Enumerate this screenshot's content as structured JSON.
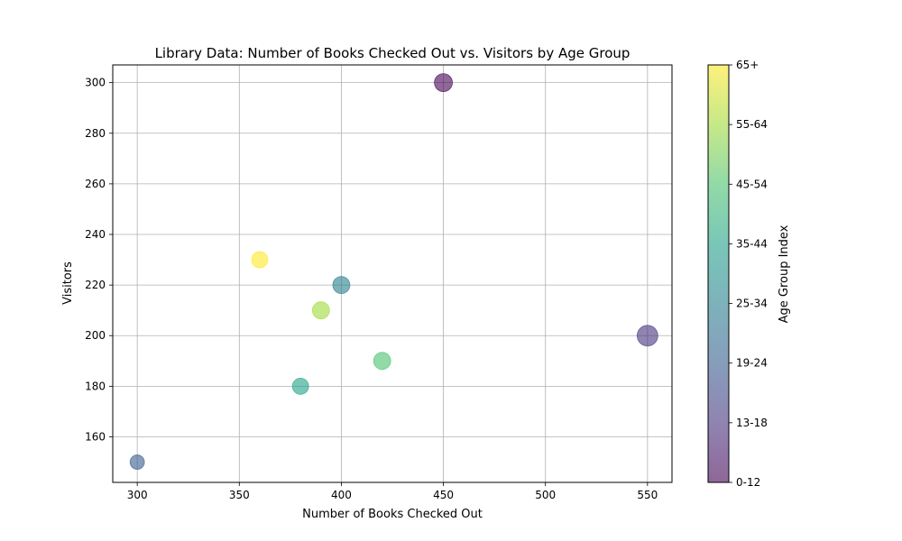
{
  "chart_data": {
    "type": "scatter",
    "title": "Library Data: Number of Books Checked Out vs. Visitors by Age Group",
    "xlabel": "Number of Books Checked Out",
    "ylabel": "Visitors",
    "xlim": [
      288,
      562
    ],
    "ylim": [
      142,
      307
    ],
    "x_ticks": [
      300,
      350,
      400,
      450,
      500,
      550
    ],
    "y_ticks": [
      160,
      180,
      200,
      220,
      240,
      260,
      280,
      300
    ],
    "grid": true,
    "colormap": "viridis",
    "marker_alpha": 0.6,
    "colorbar": {
      "label": "Age Group Index",
      "range": [
        0,
        7
      ],
      "tick_labels": [
        "0-12",
        "13-18",
        "19-24",
        "25-34",
        "35-44",
        "45-54",
        "55-64",
        "65+"
      ]
    },
    "points": [
      {
        "age_group": "0-12",
        "color_index": 0,
        "x": 450,
        "y": 300,
        "books_checked_out": 450
      },
      {
        "age_group": "13-18",
        "color_index": 1,
        "x": 550,
        "y": 200,
        "books_checked_out": 550
      },
      {
        "age_group": "19-24",
        "color_index": 2,
        "x": 300,
        "y": 150,
        "books_checked_out": 300
      },
      {
        "age_group": "25-34",
        "color_index": 3,
        "x": 400,
        "y": 220,
        "books_checked_out": 400
      },
      {
        "age_group": "35-44",
        "color_index": 4,
        "x": 380,
        "y": 180,
        "books_checked_out": 380
      },
      {
        "age_group": "45-54",
        "color_index": 5,
        "x": 420,
        "y": 190,
        "books_checked_out": 420
      },
      {
        "age_group": "55-64",
        "color_index": 6,
        "x": 390,
        "y": 210,
        "books_checked_out": 390
      },
      {
        "age_group": "65+",
        "color_index": 7,
        "x": 360,
        "y": 230,
        "books_checked_out": 360
      }
    ]
  }
}
